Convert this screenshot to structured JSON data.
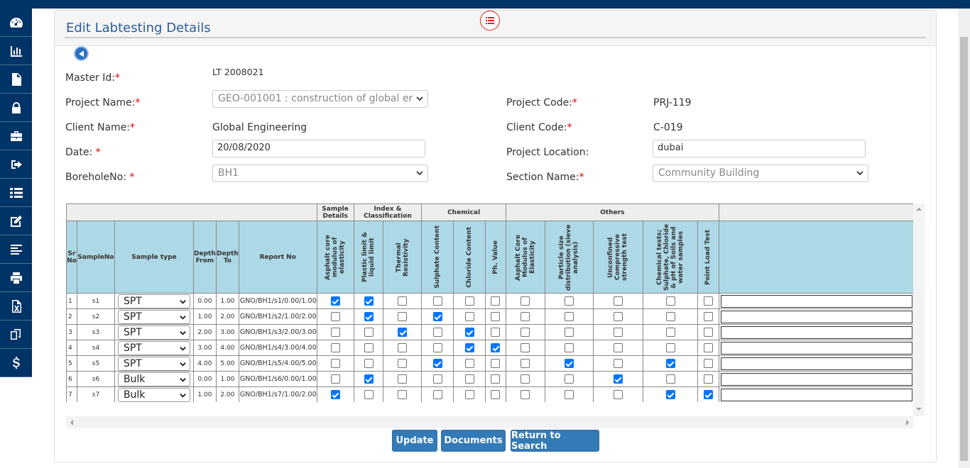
{
  "page": {
    "title": "Edit Labtesting Details"
  },
  "sidebar": {
    "icons": [
      "dashboard-icon",
      "bar-chart-icon",
      "document-icon",
      "lock-icon",
      "briefcase-icon",
      "sign-out-icon",
      "list-icon",
      "edit-icon",
      "align-left-icon",
      "print-icon",
      "excel-icon",
      "copy-icon",
      "dollar-icon"
    ]
  },
  "form": {
    "master_id": {
      "label": "Master Id:",
      "value": "LT 2008021"
    },
    "project_name": {
      "label": "Project Name:",
      "value": "GEO-001001 : construction of global er"
    },
    "project_code": {
      "label": "Project Code:",
      "value": "PRJ-119"
    },
    "client_name": {
      "label": "Client Name:",
      "value": "Global Engineering"
    },
    "client_code": {
      "label": "Client Code:",
      "value": "C-019"
    },
    "date": {
      "label": "Date: ",
      "value": "20/08/2020"
    },
    "project_location": {
      "label": "Project Location:",
      "value": "dubai"
    },
    "borehole": {
      "label": "BoreholeNo: ",
      "value": "BH1"
    },
    "section_name": {
      "label": "Section Name:",
      "value": "Community Building"
    }
  },
  "table": {
    "groups": [
      "Sample Details",
      "Index & Classification",
      "Chemical",
      "Others"
    ],
    "columns": {
      "sr": "Sr No",
      "sample_no": "SampleNo",
      "sample_type": "Sample type",
      "depth_from": "Depth From",
      "depth_to": "Depth To",
      "report_no": "Report No",
      "tests": [
        "Asphalt core modulus of elasticity",
        "Plastic limit & liquid limit",
        "Thermal Resistivity",
        "Sulphate Content",
        "Chloride Content",
        "Ph. Value",
        "Asphalt Core Modulus of Elasticity",
        "Particle size distribution (sieve analysis)",
        "Unconfined Compressive strength test",
        "Chemical tests; Sulphate, Chloride & pH of Soils and water samples",
        "Point Load Test"
      ]
    },
    "rows": [
      {
        "sr": "1",
        "sample_no": "s1",
        "type": "SPT",
        "from": "0.00",
        "to": "1.00",
        "report": "GNO/BH1/s1/0.00/1.00",
        "checks": [
          1,
          1,
          0,
          0,
          0,
          0,
          0,
          0,
          0,
          0,
          0
        ]
      },
      {
        "sr": "2",
        "sample_no": "s2",
        "type": "SPT",
        "from": "1.00",
        "to": "2.00",
        "report": "GNO/BH1/s2/1.00/2.00",
        "checks": [
          0,
          1,
          0,
          1,
          0,
          0,
          0,
          0,
          0,
          0,
          0
        ]
      },
      {
        "sr": "3",
        "sample_no": "s3",
        "type": "SPT",
        "from": "2.00",
        "to": "3.00",
        "report": "GNO/BH1/s3/2.00/3.00",
        "checks": [
          0,
          0,
          1,
          0,
          1,
          0,
          0,
          0,
          0,
          0,
          0
        ]
      },
      {
        "sr": "4",
        "sample_no": "s4",
        "type": "SPT",
        "from": "3.00",
        "to": "4.00",
        "report": "GNO/BH1/s4/3.00/4.00",
        "checks": [
          0,
          0,
          0,
          0,
          1,
          1,
          0,
          0,
          0,
          0,
          0
        ]
      },
      {
        "sr": "5",
        "sample_no": "s5",
        "type": "SPT",
        "from": "4.00",
        "to": "5.00",
        "report": "GNO/BH1/s5/4.00/5.00",
        "checks": [
          0,
          0,
          0,
          1,
          0,
          0,
          0,
          1,
          0,
          1,
          0
        ]
      },
      {
        "sr": "6",
        "sample_no": "s6",
        "type": "Bulk",
        "from": "0.00",
        "to": "1.00",
        "report": "GNO/BH1/s6/0.00/1.00",
        "checks": [
          0,
          1,
          0,
          0,
          0,
          0,
          0,
          0,
          1,
          0,
          0
        ]
      },
      {
        "sr": "7",
        "sample_no": "s7",
        "type": "Bulk",
        "from": "1.00",
        "to": "2.00",
        "report": "GNO/BH1/s7/1.00/2.00",
        "checks": [
          1,
          0,
          0,
          0,
          0,
          0,
          0,
          0,
          0,
          1,
          1
        ]
      }
    ]
  },
  "buttons": {
    "update": "Update",
    "documents": "Documents",
    "return": "Return to Search"
  },
  "colors": {
    "nav": "#003366",
    "primary": "#337ab7",
    "header_cells": "#add8e6"
  }
}
